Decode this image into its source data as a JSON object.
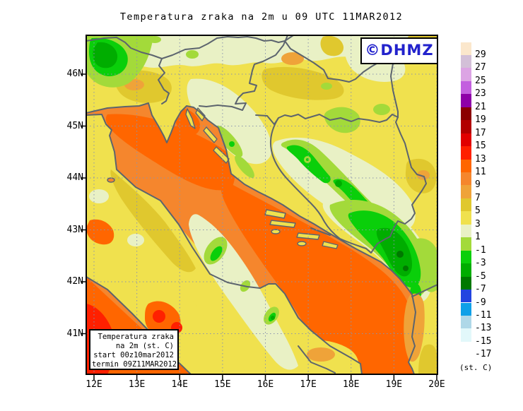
{
  "title": "Temperatura zraka na 2m u 09 UTC 11MAR2012",
  "branding": {
    "label": "©DHMZ",
    "color": "#2222CC"
  },
  "info_box": {
    "lines": [
      "Temperatura zraka",
      "na 2m (st. C)",
      "start 00z10mar2012",
      "termin 09Z11MAR2012"
    ]
  },
  "axes": {
    "lat": [
      "46N",
      "45N",
      "44N",
      "43N",
      "42N",
      "41N"
    ],
    "lon": [
      "12E",
      "13E",
      "14E",
      "15E",
      "16E",
      "17E",
      "18E",
      "19E",
      "20E"
    ]
  },
  "colorbar": {
    "unit": "(st. C)",
    "boundaries": [
      "29",
      "27",
      "25",
      "23",
      "21",
      "19",
      "17",
      "15",
      "13",
      "11",
      "9",
      "7",
      "5",
      "3",
      "1",
      "-1",
      "-3",
      "-5",
      "-7",
      "-9",
      "-11",
      "-13",
      "-15",
      "-17"
    ],
    "colors": [
      "#FBE7CC",
      "#D3C0D8",
      "#DCA4E4",
      "#C35FDF",
      "#8E00A8",
      "#8B0000",
      "#B20000",
      "#E10000",
      "#FF2000",
      "#FF6600",
      "#F5862D",
      "#EFA339",
      "#E0C82E",
      "#F0E14E",
      "#E9F1C5",
      "#A3DA3A",
      "#0ACF0A",
      "#00AD00",
      "#007800",
      "#2244E0",
      "#0FA0E8",
      "#AFD8E8",
      "#E2F8FA",
      "#FFFFFF"
    ]
  },
  "line_colors": {
    "coast_border": "#5C646E",
    "grid": "#8A93AE"
  }
}
